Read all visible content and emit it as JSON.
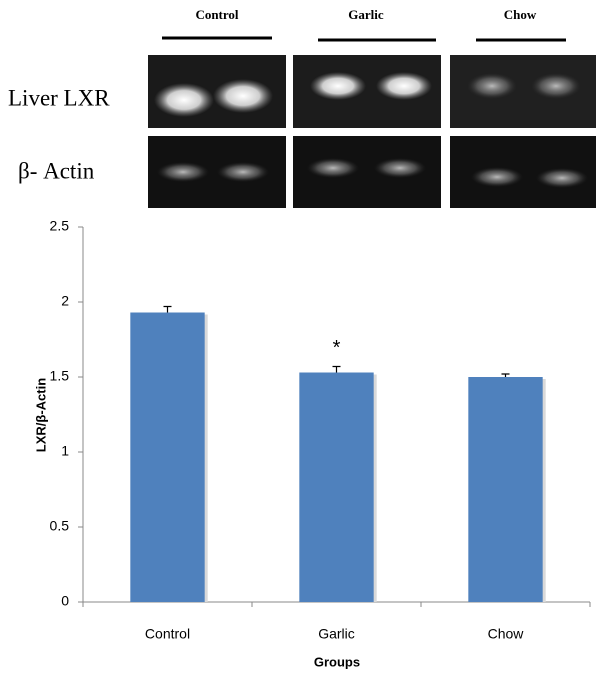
{
  "gel": {
    "lanes": [
      "Control",
      "Garlic",
      "Chow"
    ],
    "rows": [
      "Liver LXR",
      "β- Actin"
    ]
  },
  "chart_data": {
    "type": "bar",
    "x_label": "Groups",
    "y_label": "LXR/β-Actin",
    "categories": [
      "Control",
      "Garlic",
      "Chow"
    ],
    "values": [
      1.93,
      1.53,
      1.5
    ],
    "errors": [
      0.04,
      0.04,
      0.02
    ],
    "annotation": "*",
    "color": "#4f81bd",
    "ylim": [
      0,
      2.5
    ],
    "yticks": [
      0,
      0.5,
      1,
      1.5,
      2,
      2.5
    ],
    "grid": false
  }
}
